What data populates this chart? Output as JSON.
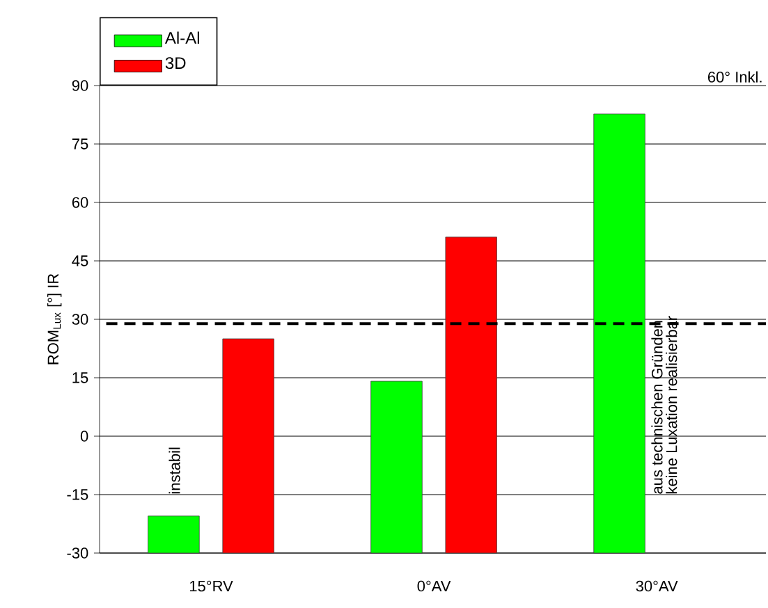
{
  "chart_data": {
    "type": "bar",
    "ylabel": "ROM$_{Lux}$ [°]   IR",
    "categories": [
      "15°RV",
      "0°AV",
      "30°AV"
    ],
    "series": [
      {
        "name": "Al-Al",
        "color": "#00ff00",
        "base": [
          -30,
          -30,
          -30
        ],
        "values": [
          9.5,
          44.1,
          112.7
        ]
      },
      {
        "name": "3D",
        "color": "#ff0000",
        "base": [
          -30,
          -30,
          null
        ],
        "values": [
          55,
          81.1,
          null
        ]
      }
    ],
    "ylim": [
      -30,
      90
    ],
    "yticks": [
      -30,
      -15,
      0,
      15,
      30,
      45,
      60,
      75,
      90
    ],
    "grid": "y",
    "legend": "top left",
    "ref_lines": [
      {
        "axis": "y",
        "value": 28.9,
        "line_style": "dashed",
        "color": "#000000"
      }
    ],
    "annotations": [
      "instabil",
      "aus technischen Gründen",
      "keine Luxation realisierbar",
      "60° Inkl."
    ]
  }
}
